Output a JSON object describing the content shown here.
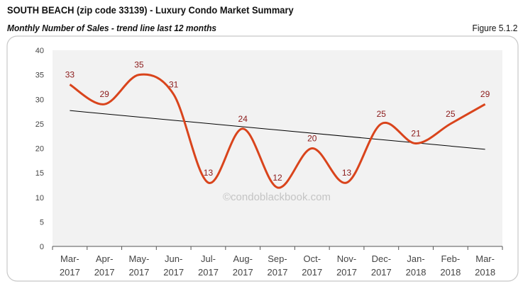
{
  "header": {
    "title": "SOUTH BEACH (zip code 33139) - Luxury Condo Market Summary",
    "subtitle": "Monthly Number of Sales - trend line last 12 months",
    "figure": "Figure 5.1.2"
  },
  "chart_data": {
    "type": "line",
    "categories": [
      [
        "Mar-",
        "2017"
      ],
      [
        "Apr-",
        "2017"
      ],
      [
        "May-",
        "2017"
      ],
      [
        "Jun-",
        "2017"
      ],
      [
        "Jul-",
        "2017"
      ],
      [
        "Aug-",
        "2017"
      ],
      [
        "Sep-",
        "2017"
      ],
      [
        "Oct-",
        "2017"
      ],
      [
        "Nov-",
        "2017"
      ],
      [
        "Dec-",
        "2017"
      ],
      [
        "Jan-",
        "2018"
      ],
      [
        "Feb-",
        "2018"
      ],
      [
        "Mar-",
        "2018"
      ]
    ],
    "values": [
      33,
      29,
      35,
      31,
      13,
      24,
      12,
      20,
      13,
      25,
      21,
      25,
      29
    ],
    "trend_line": {
      "start": 27.7,
      "end": 19.8,
      "color": "#000000"
    },
    "ylim": [
      0,
      40
    ],
    "yticks": [
      0,
      5,
      10,
      15,
      20,
      25,
      30,
      35,
      40
    ],
    "series_color": "#d9441c",
    "label_color": "#8b1a1a",
    "smooth": true,
    "watermark": "©condoblackbook.com",
    "grid": false
  }
}
